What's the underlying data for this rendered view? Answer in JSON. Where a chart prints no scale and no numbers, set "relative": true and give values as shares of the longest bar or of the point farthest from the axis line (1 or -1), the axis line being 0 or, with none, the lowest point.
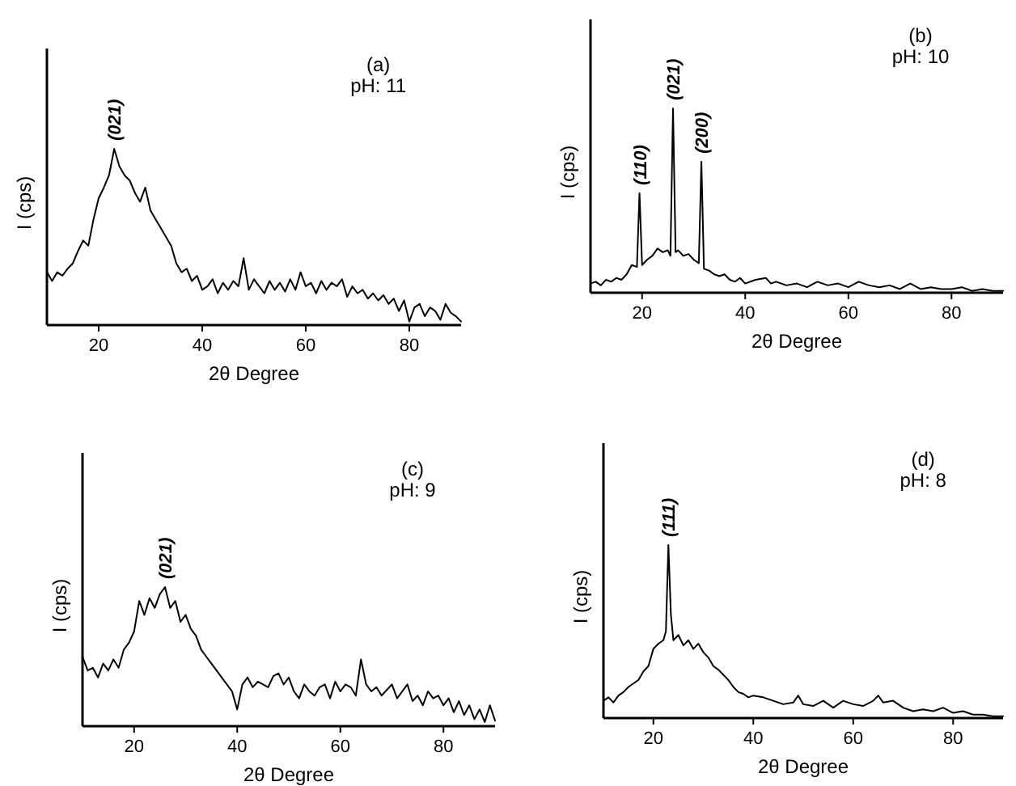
{
  "chart_data": [
    {
      "type": "line",
      "relative": true,
      "xlabel": "2θ Degree",
      "ylabel": "I (cps)",
      "xlim": [
        10,
        90
      ],
      "xticks": [
        20,
        40,
        60,
        80
      ],
      "annotations": [
        "(a)",
        "pH: 11",
        {
          "text": "(021)",
          "x": 23,
          "y": 1.0
        }
      ],
      "series": [
        {
          "color": "#000000",
          "x": [
            10,
            11,
            12,
            13,
            14,
            15,
            16,
            17,
            18,
            19,
            20,
            21,
            22,
            23,
            24,
            25,
            26,
            27,
            28,
            29,
            30,
            31,
            32,
            33,
            34,
            35,
            36,
            37,
            38,
            39,
            40,
            41,
            42,
            43,
            44,
            45,
            46,
            47,
            48,
            49,
            50,
            51,
            52,
            53,
            54,
            55,
            56,
            57,
            58,
            59,
            60,
            61,
            62,
            63,
            64,
            65,
            66,
            67,
            68,
            69,
            70,
            71,
            72,
            73,
            74,
            75,
            76,
            77,
            78,
            79,
            80,
            81,
            82,
            83,
            84,
            85,
            86,
            87,
            88,
            89,
            90
          ],
          "values": [
            0.3,
            0.25,
            0.3,
            0.28,
            0.32,
            0.35,
            0.42,
            0.48,
            0.45,
            0.6,
            0.72,
            0.78,
            0.85,
            1.0,
            0.9,
            0.85,
            0.82,
            0.75,
            0.7,
            0.78,
            0.65,
            0.6,
            0.55,
            0.5,
            0.45,
            0.35,
            0.3,
            0.32,
            0.25,
            0.28,
            0.2,
            0.22,
            0.26,
            0.18,
            0.24,
            0.2,
            0.25,
            0.22,
            0.38,
            0.2,
            0.26,
            0.22,
            0.18,
            0.25,
            0.2,
            0.24,
            0.19,
            0.26,
            0.2,
            0.3,
            0.22,
            0.24,
            0.18,
            0.25,
            0.2,
            0.24,
            0.22,
            0.26,
            0.16,
            0.22,
            0.18,
            0.2,
            0.15,
            0.18,
            0.14,
            0.17,
            0.12,
            0.15,
            0.08,
            0.14,
            0.02,
            0.1,
            0.12,
            0.05,
            0.1,
            0.08,
            0.03,
            0.12,
            0.07,
            0.05,
            0.02
          ]
        }
      ]
    },
    {
      "type": "line",
      "relative": true,
      "xlabel": "2θ Degree",
      "ylabel": "I (cps)",
      "xlim": [
        10,
        90
      ],
      "xticks": [
        20,
        40,
        60,
        80
      ],
      "annotations": [
        "(b)",
        "pH: 10",
        {
          "text": "(110)",
          "x": 19.5,
          "y": 0.54
        },
        {
          "text": "(021)",
          "x": 26,
          "y": 1.0
        },
        {
          "text": "(200)",
          "x": 31.5,
          "y": 0.71
        }
      ],
      "series": [
        {
          "color": "#000000",
          "x": [
            10,
            11,
            12,
            13,
            14,
            15,
            16,
            17,
            18,
            19,
            19.5,
            20,
            21,
            22,
            23,
            24,
            25,
            25.5,
            26,
            26.5,
            27,
            28,
            29,
            30,
            31,
            31.5,
            32,
            33,
            34,
            35,
            36,
            37,
            38,
            39,
            40,
            42,
            44,
            45,
            46,
            48,
            50,
            52,
            54,
            56,
            58,
            60,
            62,
            64,
            66,
            68,
            70,
            72,
            74,
            76,
            78,
            80,
            82,
            84,
            86,
            88,
            90
          ],
          "values": [
            0.05,
            0.06,
            0.04,
            0.07,
            0.06,
            0.08,
            0.07,
            0.1,
            0.15,
            0.14,
            0.54,
            0.15,
            0.18,
            0.2,
            0.24,
            0.22,
            0.23,
            0.2,
            1.0,
            0.22,
            0.23,
            0.2,
            0.21,
            0.18,
            0.16,
            0.71,
            0.13,
            0.12,
            0.1,
            0.09,
            0.1,
            0.07,
            0.06,
            0.08,
            0.05,
            0.07,
            0.08,
            0.05,
            0.06,
            0.04,
            0.05,
            0.03,
            0.06,
            0.04,
            0.05,
            0.03,
            0.06,
            0.04,
            0.03,
            0.04,
            0.02,
            0.05,
            0.02,
            0.03,
            0.02,
            0.02,
            0.03,
            0.01,
            0.02,
            0.01,
            0.01
          ]
        }
      ]
    },
    {
      "type": "line",
      "relative": true,
      "xlabel": "2θ Degree",
      "ylabel": "I (cps)",
      "xlim": [
        10,
        90
      ],
      "xticks": [
        20,
        40,
        60,
        80
      ],
      "annotations": [
        "(c)",
        "pH: 9",
        {
          "text": "(021)",
          "x": 26,
          "y": 1.0
        }
      ],
      "series": [
        {
          "color": "#000000",
          "x": [
            10,
            11,
            12,
            13,
            14,
            15,
            16,
            17,
            18,
            19,
            20,
            21,
            22,
            23,
            24,
            25,
            26,
            27,
            28,
            29,
            30,
            31,
            32,
            33,
            34,
            35,
            36,
            37,
            38,
            39,
            40,
            41,
            42,
            43,
            44,
            45,
            46,
            47,
            48,
            49,
            50,
            51,
            52,
            53,
            54,
            55,
            56,
            57,
            58,
            59,
            60,
            61,
            62,
            63,
            64,
            65,
            66,
            67,
            68,
            69,
            70,
            71,
            72,
            73,
            74,
            75,
            76,
            77,
            78,
            79,
            80,
            81,
            82,
            83,
            84,
            85,
            86,
            87,
            88,
            89,
            90
          ],
          "values": [
            0.5,
            0.4,
            0.42,
            0.35,
            0.45,
            0.4,
            0.48,
            0.42,
            0.55,
            0.6,
            0.68,
            0.9,
            0.8,
            0.92,
            0.85,
            0.95,
            1.0,
            0.85,
            0.9,
            0.75,
            0.8,
            0.7,
            0.65,
            0.55,
            0.5,
            0.45,
            0.4,
            0.35,
            0.3,
            0.25,
            0.12,
            0.3,
            0.35,
            0.28,
            0.32,
            0.3,
            0.28,
            0.36,
            0.38,
            0.3,
            0.35,
            0.25,
            0.2,
            0.3,
            0.25,
            0.22,
            0.28,
            0.3,
            0.2,
            0.32,
            0.25,
            0.3,
            0.28,
            0.22,
            0.48,
            0.3,
            0.25,
            0.28,
            0.22,
            0.26,
            0.3,
            0.2,
            0.25,
            0.3,
            0.18,
            0.22,
            0.15,
            0.25,
            0.2,
            0.22,
            0.15,
            0.2,
            0.1,
            0.18,
            0.08,
            0.15,
            0.05,
            0.12,
            0.03,
            0.15,
            0.04
          ]
        }
      ]
    },
    {
      "type": "line",
      "relative": true,
      "xlabel": "2θ Degree",
      "ylabel": "I (cps)",
      "xlim": [
        10,
        90
      ],
      "xticks": [
        20,
        40,
        60,
        80
      ],
      "annotations": [
        "(d)",
        "pH: 8",
        {
          "text": "(111)",
          "x": 23,
          "y": 1.0
        }
      ],
      "series": [
        {
          "color": "#000000",
          "x": [
            10,
            11,
            12,
            13,
            14,
            15,
            16,
            17,
            18,
            19,
            20,
            21,
            22,
            22.5,
            23,
            23.5,
            24,
            25,
            26,
            27,
            28,
            29,
            30,
            31,
            32,
            33,
            34,
            35,
            36,
            37,
            38,
            39,
            40,
            42,
            44,
            46,
            48,
            49,
            50,
            52,
            54,
            56,
            58,
            60,
            62,
            64,
            65,
            66,
            68,
            70,
            72,
            74,
            76,
            78,
            80,
            82,
            84,
            86,
            88,
            90
          ],
          "values": [
            0.1,
            0.12,
            0.09,
            0.13,
            0.15,
            0.18,
            0.2,
            0.22,
            0.27,
            0.3,
            0.4,
            0.43,
            0.45,
            0.5,
            1.0,
            0.6,
            0.45,
            0.48,
            0.42,
            0.45,
            0.4,
            0.43,
            0.38,
            0.35,
            0.3,
            0.28,
            0.25,
            0.22,
            0.18,
            0.15,
            0.14,
            0.12,
            0.13,
            0.12,
            0.1,
            0.08,
            0.09,
            0.13,
            0.08,
            0.07,
            0.1,
            0.06,
            0.1,
            0.08,
            0.07,
            0.1,
            0.13,
            0.09,
            0.1,
            0.06,
            0.04,
            0.05,
            0.04,
            0.06,
            0.03,
            0.04,
            0.02,
            0.02,
            0.01,
            0.01
          ]
        }
      ]
    }
  ]
}
